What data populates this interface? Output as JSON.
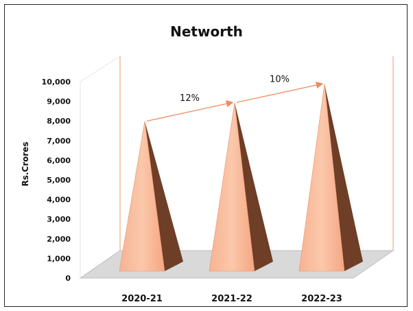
{
  "chart_data": {
    "type": "bar",
    "title": "Networth",
    "ylabel": "Rs.Crores",
    "xlabel": "",
    "categories": [
      "2020-21",
      "2021-22",
      "2022-23"
    ],
    "values": [
      8100,
      9050,
      10000
    ],
    "ylim": [
      0,
      10000
    ],
    "yticks": [
      "0",
      "1,000",
      "2,000",
      "3,000",
      "4,000",
      "5,000",
      "6,000",
      "7,000",
      "8,000",
      "9,000",
      "10,000"
    ],
    "growth_annotations": [
      {
        "from": "2020-21",
        "to": "2021-22",
        "label": "12%"
      },
      {
        "from": "2021-22",
        "to": "2022-23",
        "label": "10%"
      }
    ],
    "colors": {
      "bar_front": "#f4a682",
      "bar_light": "#fbc8ab",
      "bar_shade": "#6e3e26",
      "arrow": "#f08a5d",
      "floor": "#d9d9d9",
      "back_wall": "#f4a682"
    },
    "grid": false,
    "legend": "none"
  }
}
